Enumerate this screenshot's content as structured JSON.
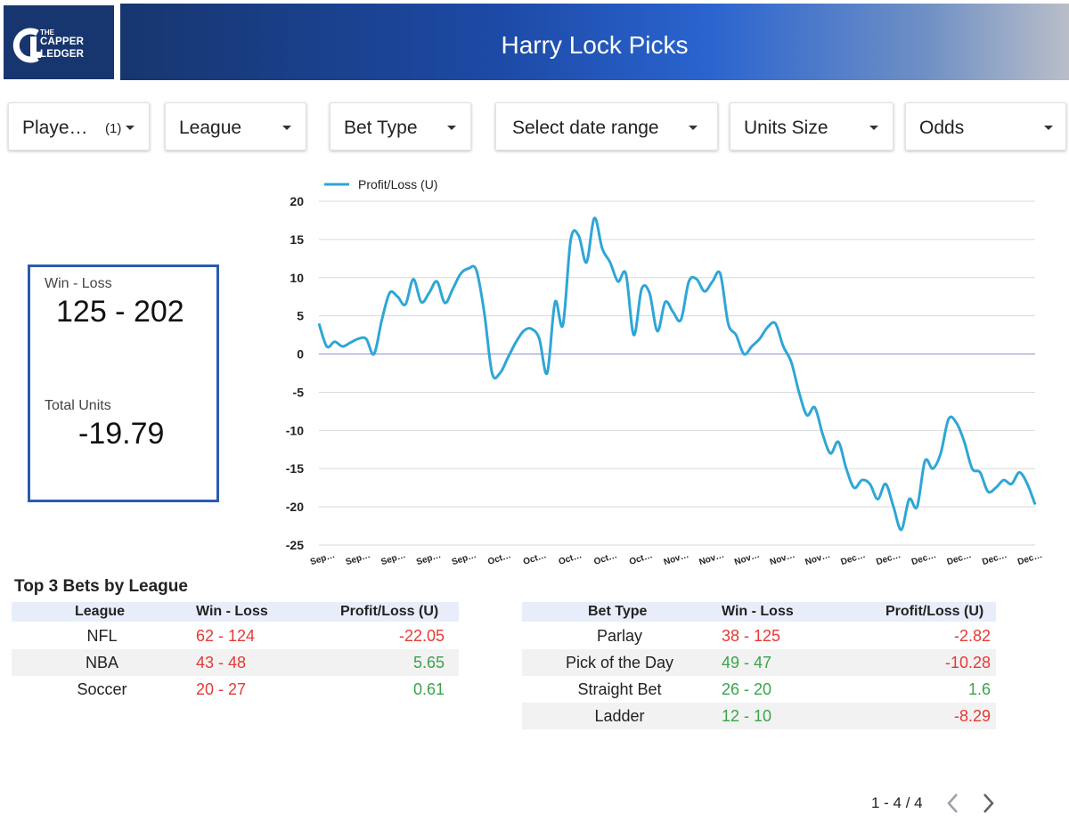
{
  "header": {
    "logo": {
      "the": "THE",
      "line1": "CAPPER",
      "line2": "LEDGER"
    },
    "title": "Harry Lock Picks",
    "brand_color": "#17366f"
  },
  "filters": [
    {
      "label": "Playe…",
      "count": "(1)"
    },
    {
      "label": "League"
    },
    {
      "label": "Bet Type"
    },
    {
      "label": "Select date range"
    },
    {
      "label": "Units Size"
    },
    {
      "label": "Odds"
    }
  ],
  "scorecard": {
    "win_loss_label": "Win - Loss",
    "win_loss_value": "125 - 202",
    "total_units_label": "Total Units",
    "total_units_value": "-19.79"
  },
  "chart_data": {
    "type": "line",
    "series": [
      {
        "name": "Profit/Loss (U)",
        "color": "#2ea6d6",
        "values": [
          4.0,
          1.0,
          1.6,
          1.0,
          1.5,
          2.0,
          2.0,
          0.0,
          4.5,
          8.0,
          7.5,
          6.5,
          9.8,
          6.8,
          8.0,
          9.5,
          6.7,
          8.5,
          10.5,
          11.2,
          11.0,
          5.5,
          -2.5,
          -2.5,
          -0.5,
          1.5,
          3.0,
          3.3,
          2.0,
          -2.5,
          6.8,
          3.8,
          15.0,
          15.5,
          12.0,
          17.8,
          13.8,
          12.0,
          9.5,
          10.5,
          2.5,
          8.5,
          8.0,
          3.0,
          6.8,
          5.5,
          4.5,
          9.5,
          9.8,
          8.2,
          9.5,
          10.5,
          4.0,
          2.5,
          0.0,
          1.0,
          2.0,
          3.5,
          4.0,
          1.0,
          -1.0,
          -5.0,
          -8.0,
          -7.0,
          -10.5,
          -13.0,
          -11.5,
          -15.0,
          -17.5,
          -16.5,
          -17.0,
          -19.0,
          -17.0,
          -20.0,
          -23.0,
          -19.0,
          -20.0,
          -14.0,
          -15.0,
          -13.0,
          -8.5,
          -9.0,
          -11.5,
          -15.0,
          -15.5,
          -18.0,
          -17.5,
          -16.5,
          -17.0,
          -15.5,
          -17.0,
          -19.7
        ]
      }
    ],
    "x_tick_labels": [
      "Sep…",
      "Sep…",
      "Sep…",
      "Sep…",
      "Sep…",
      "Oct…",
      "Oct…",
      "Oct…",
      "Oct…",
      "Oct…",
      "Nov…",
      "Nov…",
      "Nov…",
      "Nov…",
      "Nov…",
      "Dec…",
      "Dec…",
      "Dec…",
      "Dec…",
      "Dec…",
      "Dec…"
    ],
    "y_ticks": [
      20,
      15,
      10,
      5,
      0,
      -5,
      -10,
      -15,
      -20,
      -25
    ],
    "ylim": [
      -25,
      20
    ],
    "grid": true,
    "legend_position": "top-left",
    "zero_line_color": "#8a93c8"
  },
  "section_title": "Top 3 Bets by League",
  "league_table": {
    "headers": [
      "League",
      "Win - Loss",
      "Profit/Loss (U)"
    ],
    "rows": [
      {
        "name": "NFL",
        "wl": "62 - 124",
        "pl": "-22.05",
        "wl_color": "red",
        "pl_color": "red"
      },
      {
        "name": "NBA",
        "wl": "43 - 48",
        "pl": "5.65",
        "wl_color": "red",
        "pl_color": "green"
      },
      {
        "name": "Soccer",
        "wl": "20 - 27",
        "pl": "0.61",
        "wl_color": "red",
        "pl_color": "green"
      }
    ]
  },
  "bet_type_table": {
    "headers": [
      "Bet Type",
      "Win - Loss",
      "Profit/Loss (U)"
    ],
    "rows": [
      {
        "name": "Parlay",
        "wl": "38 - 125",
        "pl": "-2.82",
        "wl_color": "red",
        "pl_color": "red"
      },
      {
        "name": "Pick of the Day",
        "wl": "49 - 47",
        "pl": "-10.28",
        "wl_color": "green",
        "pl_color": "red"
      },
      {
        "name": "Straight Bet",
        "wl": "26 - 20",
        "pl": "1.6",
        "wl_color": "green",
        "pl_color": "green"
      },
      {
        "name": "Ladder",
        "wl": "12 - 10",
        "pl": "-8.29",
        "wl_color": "green",
        "pl_color": "red"
      }
    ]
  },
  "pagination": {
    "text": "1 - 4 / 4"
  },
  "colors": {
    "red": "#e53935",
    "green": "#3aa34a",
    "header_row": "#e8eef9",
    "accent": "#2a5bb0"
  }
}
